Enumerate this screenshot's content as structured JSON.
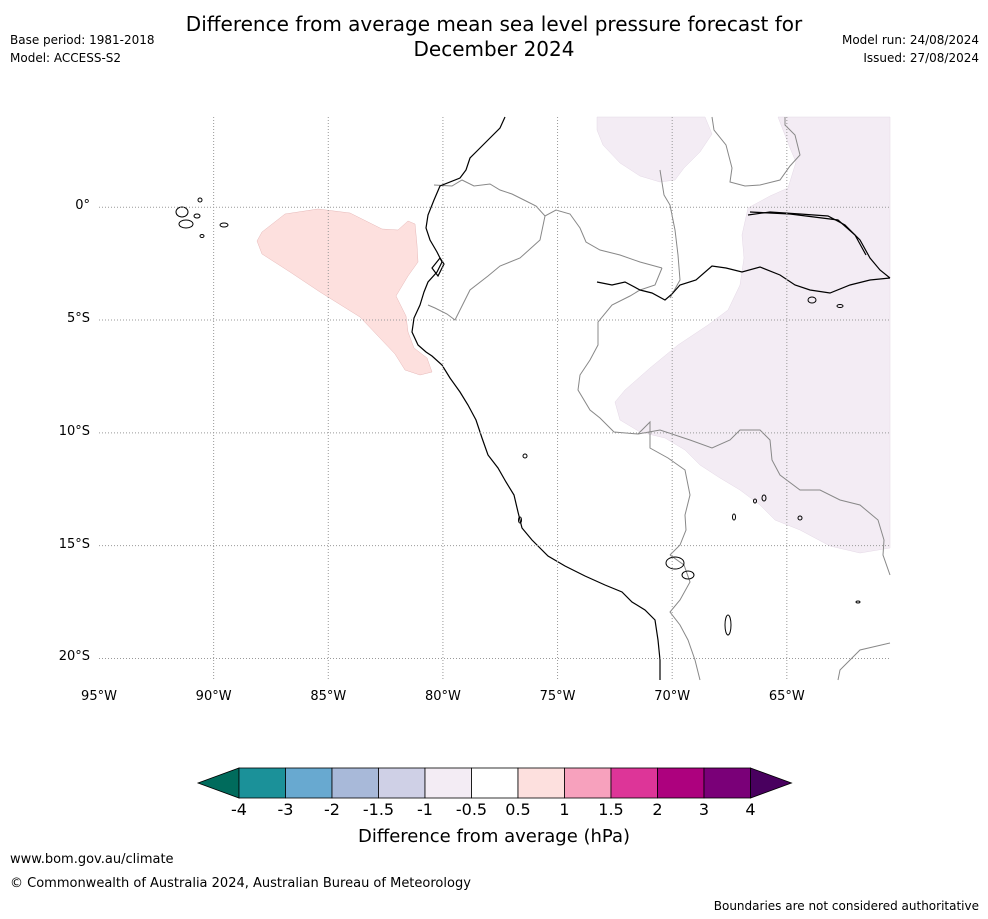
{
  "header": {
    "title_line1": "Difference from average mean sea level pressure forecast for",
    "title_line2": "December 2024",
    "base_period": "Base period: 1981-2018",
    "model": "Model: ACCESS-S2",
    "model_run": "Model run: 24/08/2024",
    "issued": "Issued: 27/08/2024"
  },
  "map": {
    "lat_labels": [
      "0°",
      "5°S",
      "10°S",
      "15°S",
      "20°S"
    ],
    "lon_labels": [
      "95°W",
      "90°W",
      "85°W",
      "80°W",
      "75°W",
      "70°W",
      "65°W"
    ],
    "grid": true,
    "extent": {
      "lon_min": -95,
      "lon_max": -60.5,
      "lat_max": 4,
      "lat_min": -21
    },
    "anomaly_regions": [
      {
        "name": "pacific-positive-anomaly",
        "range": "0.5 to 1",
        "color": "#fde0de"
      },
      {
        "name": "amazon-negative-anomaly",
        "range": "-1 to -0.5",
        "color": "#f3ecf4"
      }
    ]
  },
  "colorbar": {
    "title": "Difference from average (hPa)",
    "ticks": [
      "-4",
      "-3",
      "-2",
      "-1.5",
      "-1",
      "-0.5",
      "0.5",
      "1",
      "1.5",
      "2",
      "3",
      "4"
    ],
    "colors": [
      "#006b5c",
      "#1b9199",
      "#68a9d0",
      "#a8b9d9",
      "#cfd0e6",
      "#f3ecf4",
      "#ffffff",
      "#fde0de",
      "#f7a1bd",
      "#dd3598",
      "#ad017e",
      "#7a0078",
      "#49005f"
    ]
  },
  "footer": {
    "website": "www.bom.gov.au/climate",
    "copyright": "© Commonwealth of Australia 2024, Australian Bureau of Meteorology",
    "disclaimer": "Boundaries are not considered authoritative"
  }
}
